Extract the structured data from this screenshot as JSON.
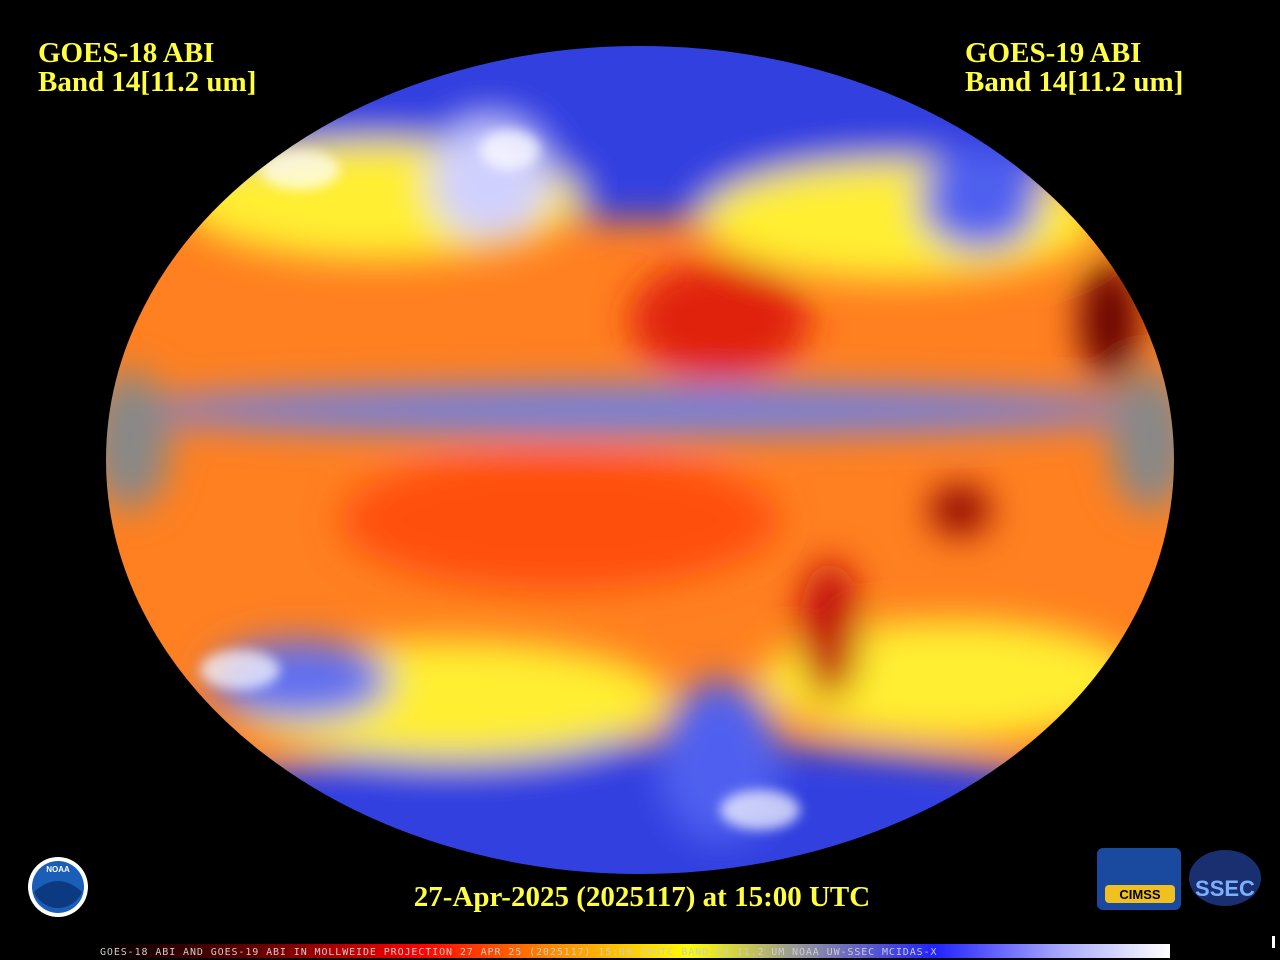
{
  "header": {
    "left": {
      "line1": "GOES-18 ABI",
      "line2": "Band 14[11.2 um]"
    },
    "right": {
      "line1": "GOES-19 ABI",
      "line2": "Band 14[11.2 um]"
    }
  },
  "timestamp": "27-Apr-2025 (2025117) at 15:00 UTC",
  "footer": "GOES-18 ABI AND GOES-19 ABI IN MOLLWEIDE PROJECTION 27 APR 25 (2025117) 15:00:20UTC BAND-14 11.2 UM NOAA UW-SSEC MCIDAS-X",
  "logos": {
    "noaa": "NOAA",
    "cimss": "CIMSS",
    "ssec": "SSEC"
  }
}
